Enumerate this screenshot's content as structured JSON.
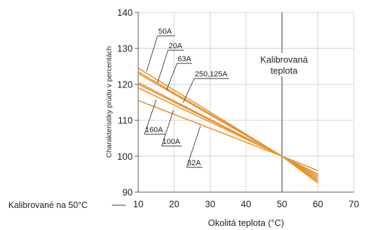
{
  "chart_data": {
    "type": "line",
    "xlabel": "Okolitá teplota (°C)",
    "ylabel": "Charakteristiky prúdu v percentách",
    "xlim": [
      10,
      70
    ],
    "ylim": [
      90,
      140
    ],
    "x_ticks": [
      "10",
      "20",
      "30",
      "40",
      "50",
      "60",
      "70"
    ],
    "y_ticks": [
      "90",
      "100",
      "110",
      "120",
      "130",
      "140"
    ],
    "grid": true,
    "series": [
      {
        "name": "50A",
        "x": [
          10,
          50,
          60
        ],
        "y": [
          124.5,
          100,
          93.5
        ]
      },
      {
        "name": "20A",
        "x": [
          10,
          50,
          60
        ],
        "y": [
          123.5,
          100,
          94
        ]
      },
      {
        "name": "63A",
        "x": [
          10,
          50,
          60
        ],
        "y": [
          123,
          100,
          94.5
        ]
      },
      {
        "name": "250,125A",
        "x": [
          10,
          50,
          60
        ],
        "y": [
          120.5,
          100,
          95
        ]
      },
      {
        "name": "160A",
        "x": [
          10,
          50,
          60
        ],
        "y": [
          120,
          100,
          92.5
        ]
      },
      {
        "name": "100A",
        "x": [
          10,
          50,
          60
        ],
        "y": [
          119,
          100,
          96
        ]
      },
      {
        "name": "32A",
        "x": [
          10,
          50,
          60
        ],
        "y": [
          115.5,
          100,
          93
        ]
      }
    ],
    "reference_line_label": "Kalibrovaná teplota",
    "reference_x": 50,
    "footnote": "Kalibrované na 50°C",
    "line_color": "#e8922e"
  }
}
